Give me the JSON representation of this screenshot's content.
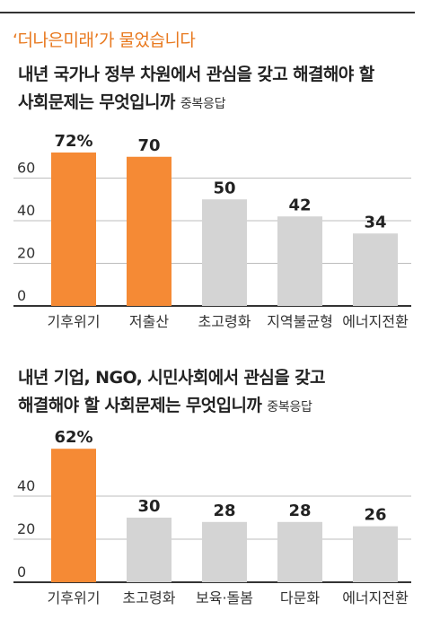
{
  "headline": "‘더나은미래’가 물었습니다",
  "chart_data": [
    {
      "type": "bar",
      "title_line1": "내년 국가나 정부 차원에서 관심을 갖고 해결해야 할",
      "title_line2": "사회문제는 무엇입니까",
      "note": "중복응답",
      "categories": [
        "기후위기",
        "저출산",
        "초고령화",
        "지역불균형",
        "에너지전환"
      ],
      "values": [
        72,
        70,
        50,
        42,
        34
      ],
      "value_labels": [
        "72%",
        "70",
        "50",
        "42",
        "34"
      ],
      "highlight": [
        true,
        true,
        false,
        false,
        false
      ],
      "yticks": [
        0,
        20,
        40,
        60
      ],
      "ylim": [
        0,
        80
      ],
      "grid": true
    },
    {
      "type": "bar",
      "title_line1": "내년 기업, NGO, 시민사회에서 관심을 갖고",
      "title_line2": "해결해야 할 사회문제는 무엇입니까",
      "note": "중복응답",
      "categories": [
        "기후위기",
        "초고령화",
        "보육·돌봄",
        "다문화",
        "에너지전환"
      ],
      "values": [
        62,
        30,
        28,
        28,
        26
      ],
      "value_labels": [
        "62%",
        "30",
        "28",
        "28",
        "26"
      ],
      "highlight": [
        true,
        false,
        false,
        false,
        false
      ],
      "yticks": [
        0,
        20,
        40
      ],
      "ylim": [
        0,
        70
      ],
      "grid": true
    }
  ],
  "colors": {
    "highlight": "#f58a35",
    "normal": "#d4d4d4",
    "grid": "#bdbdbd",
    "axis": "#333333"
  }
}
